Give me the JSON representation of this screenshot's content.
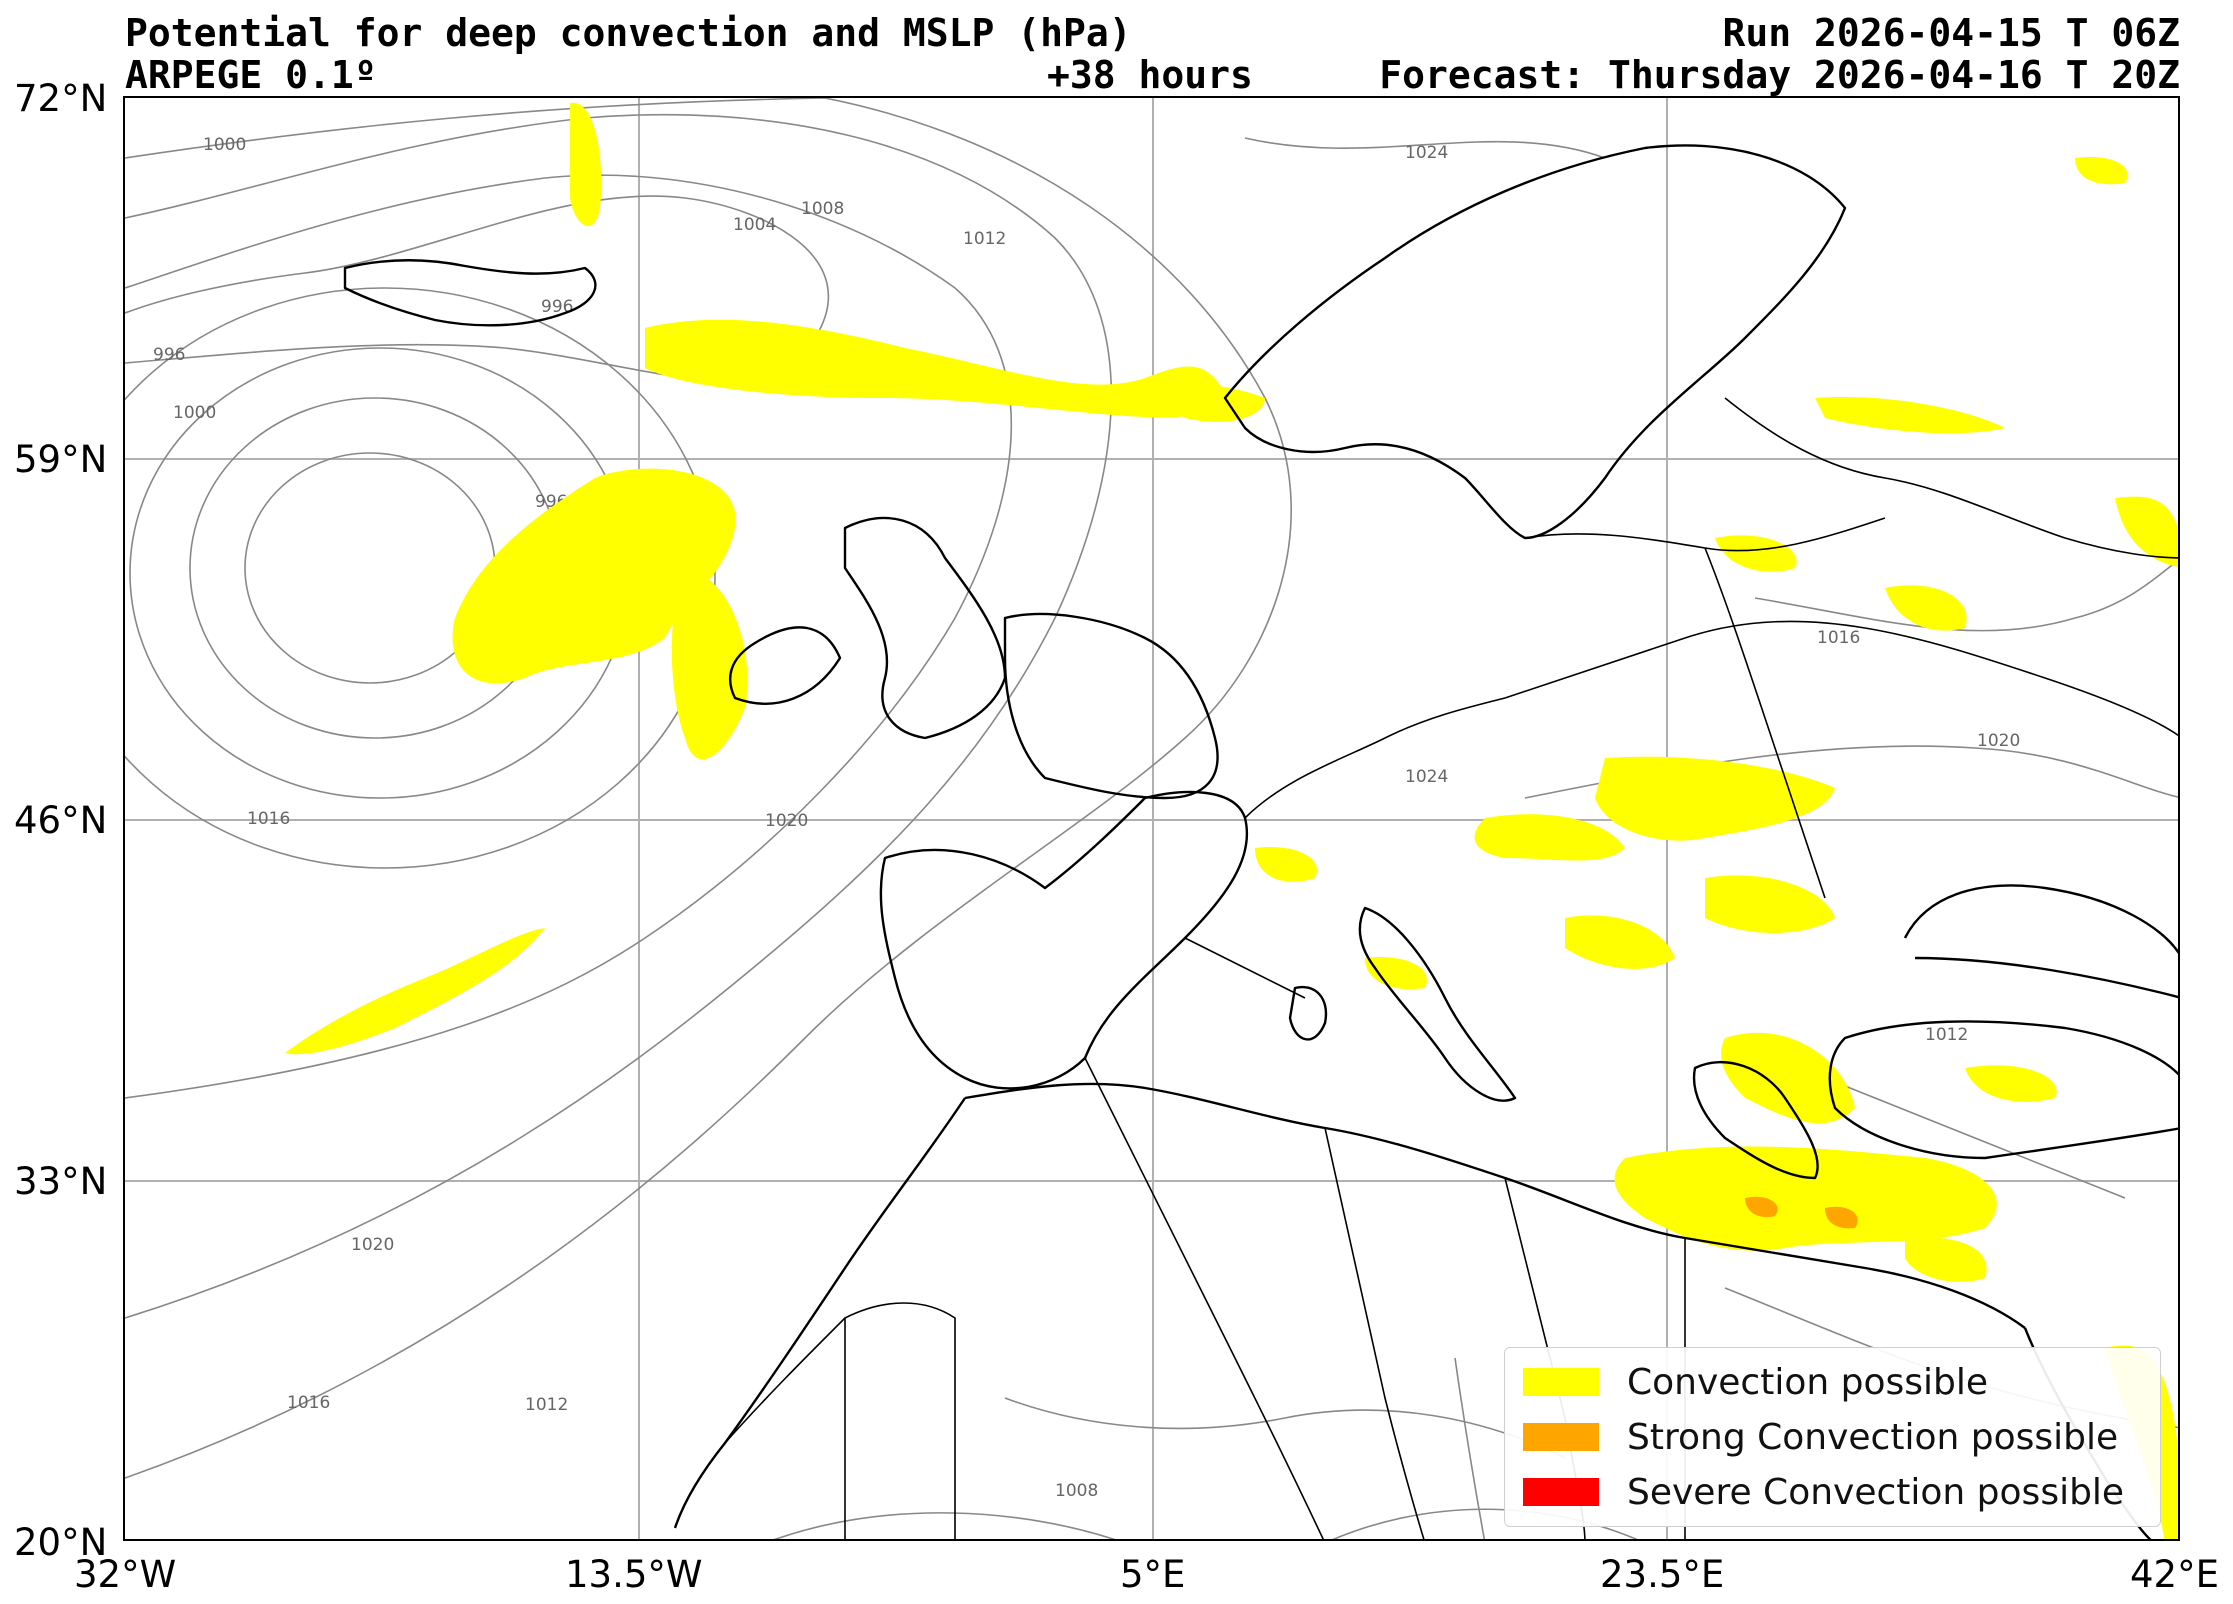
{
  "header": {
    "title": "Potential for deep convection and MSLP (hPa)",
    "model": "ARPEGE 0.1º",
    "lead": "+38 hours",
    "run": "Run 2026-04-15 T 06Z",
    "forecast": "Forecast: Thursday 2026-04-16 T 20Z"
  },
  "axes": {
    "lat_labels": [
      "72°N",
      "59°N",
      "46°N",
      "33°N",
      "20°N"
    ],
    "lon_labels": [
      "32°W",
      "13.5°W",
      "5°E",
      "23.5°E",
      "42°E"
    ],
    "lon_range": [
      -32,
      42
    ],
    "lat_range": [
      20,
      72
    ],
    "grid": true
  },
  "isobars": [
    "996",
    "1000",
    "1004",
    "1008",
    "1012",
    "1016",
    "1020",
    "1024"
  ],
  "legend": {
    "items": [
      {
        "label": "Convection possible",
        "color": "#ffff00"
      },
      {
        "label": "Strong Convection possible",
        "color": "#ffa500"
      },
      {
        "label": "Severe Convection possible",
        "color": "#ff0000"
      }
    ],
    "placement": "lower-right"
  },
  "colors": {
    "coast": "#000000",
    "isobar": "#888888",
    "grid": "#b0b0b0"
  }
}
